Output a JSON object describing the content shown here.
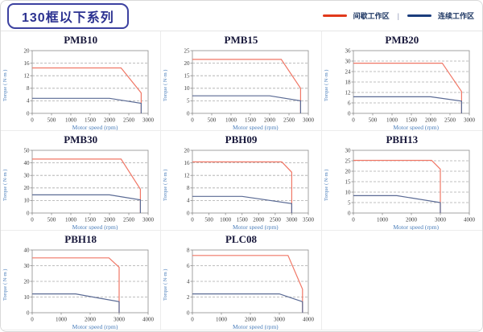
{
  "header": {
    "title": "130框以下系列",
    "legend": {
      "intermittent_label": "间歇工作区",
      "separator": "|",
      "continuous_label": "连续工作区",
      "intermittent_color": "#e1391b",
      "continuous_color": "#1b3d7c"
    }
  },
  "axis": {
    "xlabel": "Motor speed (rpm)",
    "ylabel": "Torque ( N·m )"
  },
  "colors": {
    "intermittent_line": "#f07766",
    "continuous_line": "#5a6a94",
    "grid": "#aaaaaa",
    "plot_border": "#8c8c8c",
    "tick_text": "#3d3d3d",
    "axis_label_text": "#4a7ebb",
    "title_text": "#17173a"
  },
  "chart_data": [
    {
      "type": "line",
      "title": "PMB10",
      "xlim": [
        0,
        3000
      ],
      "ylim": [
        0,
        20
      ],
      "xticks": [
        0,
        500,
        1000,
        1500,
        2000,
        2500,
        3000
      ],
      "yticks": [
        0,
        4,
        8,
        12,
        16,
        20
      ],
      "series": [
        {
          "name": "间歇工作区",
          "color_key": "intermittent",
          "points": [
            [
              0,
              14.5
            ],
            [
              2300,
              14.5
            ],
            [
              2820,
              6.5
            ],
            [
              2820,
              0
            ]
          ]
        },
        {
          "name": "连续工作区",
          "color_key": "continuous",
          "points": [
            [
              0,
              4.8
            ],
            [
              2000,
              4.8
            ],
            [
              2820,
              3.2
            ],
            [
              2820,
              0
            ]
          ]
        }
      ]
    },
    {
      "type": "line",
      "title": "PMB15",
      "xlim": [
        0,
        3000
      ],
      "ylim": [
        0,
        25
      ],
      "xticks": [
        0,
        500,
        1000,
        1500,
        2000,
        2500,
        3000
      ],
      "yticks": [
        0,
        5,
        10,
        15,
        20,
        25
      ],
      "series": [
        {
          "name": "间歇工作区",
          "color_key": "intermittent",
          "points": [
            [
              0,
              21.5
            ],
            [
              2300,
              21.5
            ],
            [
              2800,
              10
            ],
            [
              2800,
              0
            ]
          ]
        },
        {
          "name": "连续工作区",
          "color_key": "continuous",
          "points": [
            [
              0,
              7
            ],
            [
              2000,
              7
            ],
            [
              2800,
              5
            ],
            [
              2800,
              0
            ]
          ]
        }
      ]
    },
    {
      "type": "line",
      "title": "PMB20",
      "xlim": [
        0,
        3000
      ],
      "ylim": [
        0,
        36
      ],
      "xticks": [
        0,
        500,
        1000,
        1500,
        2000,
        2500,
        3000
      ],
      "yticks": [
        0,
        6,
        12,
        18,
        24,
        30,
        36
      ],
      "series": [
        {
          "name": "间歇工作区",
          "color_key": "intermittent",
          "points": [
            [
              0,
              28.8
            ],
            [
              2300,
              28.8
            ],
            [
              2800,
              12.5
            ],
            [
              2800,
              0
            ]
          ]
        },
        {
          "name": "连续工作区",
          "color_key": "continuous",
          "points": [
            [
              0,
              9.5
            ],
            [
              2000,
              9.5
            ],
            [
              2800,
              7
            ],
            [
              2800,
              0
            ]
          ]
        }
      ]
    },
    {
      "type": "line",
      "title": "PMB30",
      "xlim": [
        0,
        3000
      ],
      "ylim": [
        0,
        50
      ],
      "xticks": [
        0,
        500,
        1000,
        1500,
        2000,
        2500,
        3000
      ],
      "yticks": [
        0,
        10,
        20,
        30,
        40,
        50
      ],
      "series": [
        {
          "name": "间歇工作区",
          "color_key": "intermittent",
          "points": [
            [
              0,
              43
            ],
            [
              2300,
              43
            ],
            [
              2800,
              19
            ],
            [
              2800,
              0
            ]
          ]
        },
        {
          "name": "连续工作区",
          "color_key": "continuous",
          "points": [
            [
              0,
              14.5
            ],
            [
              2000,
              14.5
            ],
            [
              2800,
              10.5
            ],
            [
              2800,
              0
            ]
          ]
        }
      ]
    },
    {
      "type": "line",
      "title": "PBH09",
      "xlim": [
        0,
        3500
      ],
      "ylim": [
        0,
        20
      ],
      "xticks": [
        0,
        500,
        1000,
        1500,
        2000,
        2500,
        3000,
        3500
      ],
      "yticks": [
        0,
        4,
        8,
        12,
        16,
        20
      ],
      "series": [
        {
          "name": "间歇工作区",
          "color_key": "intermittent",
          "points": [
            [
              0,
              16.3
            ],
            [
              2700,
              16.3
            ],
            [
              3000,
              13
            ],
            [
              3000,
              0
            ]
          ]
        },
        {
          "name": "连续工作区",
          "color_key": "continuous",
          "points": [
            [
              0,
              5.3
            ],
            [
              1500,
              5.3
            ],
            [
              3000,
              3
            ],
            [
              3000,
              0
            ]
          ]
        }
      ]
    },
    {
      "type": "line",
      "title": "PBH13",
      "xlim": [
        0,
        4000
      ],
      "ylim": [
        0,
        30
      ],
      "xticks": [
        0,
        1000,
        2000,
        3000,
        4000
      ],
      "yticks": [
        0,
        5,
        10,
        15,
        20,
        25,
        30
      ],
      "series": [
        {
          "name": "间歇工作区",
          "color_key": "intermittent",
          "points": [
            [
              0,
              25.2
            ],
            [
              2700,
              25.2
            ],
            [
              3000,
              21
            ],
            [
              3000,
              0
            ]
          ]
        },
        {
          "name": "连续工作区",
          "color_key": "continuous",
          "points": [
            [
              0,
              8.3
            ],
            [
              1500,
              8.3
            ],
            [
              3000,
              5
            ],
            [
              3000,
              0
            ]
          ]
        }
      ]
    },
    {
      "type": "line",
      "title": "PBH18",
      "xlim": [
        0,
        4000
      ],
      "ylim": [
        0,
        40
      ],
      "xticks": [
        0,
        1000,
        2000,
        3000,
        4000
      ],
      "yticks": [
        0,
        10,
        20,
        30,
        40
      ],
      "series": [
        {
          "name": "间歇工作区",
          "color_key": "intermittent",
          "points": [
            [
              0,
              35
            ],
            [
              2650,
              35
            ],
            [
              3000,
              29
            ],
            [
              3000,
              0
            ]
          ]
        },
        {
          "name": "连续工作区",
          "color_key": "continuous",
          "points": [
            [
              0,
              12
            ],
            [
              1500,
              12
            ],
            [
              3000,
              7
            ],
            [
              3000,
              0
            ]
          ]
        }
      ]
    },
    {
      "type": "line",
      "title": "PLC08",
      "xlim": [
        0,
        4000
      ],
      "ylim": [
        0,
        8
      ],
      "xticks": [
        0,
        1000,
        2000,
        3000,
        4000
      ],
      "yticks": [
        0,
        2,
        4,
        6,
        8
      ],
      "series": [
        {
          "name": "间歇工作区",
          "color_key": "intermittent",
          "points": [
            [
              0,
              7.3
            ],
            [
              3300,
              7.3
            ],
            [
              3800,
              3
            ],
            [
              3800,
              0
            ]
          ]
        },
        {
          "name": "连续工作区",
          "color_key": "continuous",
          "points": [
            [
              0,
              2.4
            ],
            [
              3000,
              2.4
            ],
            [
              3800,
              1.4
            ],
            [
              3800,
              0
            ]
          ]
        }
      ]
    }
  ]
}
